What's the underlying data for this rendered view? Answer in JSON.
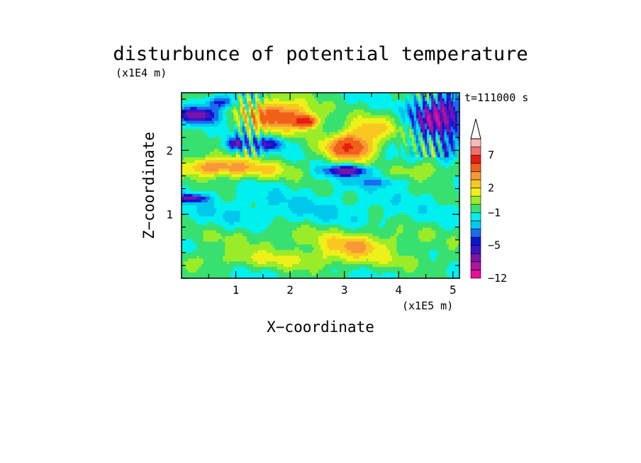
{
  "chart_data": {
    "type": "heatmap",
    "title": "disturbunce of potential temperature",
    "xlabel": "X−coordinate",
    "ylabel": "Z−coordinate",
    "x_scale_label": "(x1E5 m)",
    "y_scale_label": "(x1E4 m)",
    "time_label": "t=111000 s",
    "xlim": [
      0,
      5.12
    ],
    "ylim": [
      0,
      2.9
    ],
    "x_ticks": [
      1,
      2,
      3,
      4,
      5
    ],
    "x_tick_labels": [
      "1",
      "2",
      "3",
      "4",
      "5"
    ],
    "y_ticks": [
      1,
      2
    ],
    "y_tick_labels": [
      "1",
      "2"
    ],
    "colorbar": {
      "labels": [
        {
          "text": "7",
          "value": 7
        },
        {
          "text": "2",
          "value": 2
        },
        {
          "text": "−1",
          "value": -1
        },
        {
          "text": "−5",
          "value": -5
        },
        {
          "text": "−12",
          "value": -12
        }
      ],
      "levels": [
        -12,
        -9,
        -7,
        -5,
        -4,
        -3,
        -2,
        -1,
        0,
        1,
        2,
        3,
        4,
        5,
        7,
        9,
        12
      ],
      "colors": [
        "#e6109a",
        "#b0139f",
        "#7a15a8",
        "#3b14c8",
        "#0a16d2",
        "#1b6bf0",
        "#00c8ec",
        "#00f0f0",
        "#38e070",
        "#9aec28",
        "#eef01a",
        "#f8c820",
        "#f89838",
        "#f06018",
        "#e81c10",
        "#f07070",
        "#f8b8b8"
      ],
      "extend": "max"
    },
    "features": [
      {
        "x": 0.3,
        "z": 2.55,
        "sx": 0.35,
        "sz": 0.12,
        "v": -6
      },
      {
        "x": 0.7,
        "z": 2.75,
        "sx": 0.25,
        "sz": 0.1,
        "v": -4
      },
      {
        "x": 1.8,
        "z": 2.55,
        "sx": 0.6,
        "sz": 0.25,
        "v": 6
      },
      {
        "x": 2.3,
        "z": 2.45,
        "sx": 0.2,
        "sz": 0.1,
        "v": 7
      },
      {
        "x": 3.1,
        "z": 2.05,
        "sx": 0.45,
        "sz": 0.2,
        "v": 7
      },
      {
        "x": 3.5,
        "z": 2.35,
        "sx": 0.5,
        "sz": 0.2,
        "v": 3
      },
      {
        "x": 3.05,
        "z": 1.68,
        "sx": 0.4,
        "sz": 0.08,
        "v": -6
      },
      {
        "x": 3.6,
        "z": 1.5,
        "sx": 0.5,
        "sz": 0.08,
        "v": -2
      },
      {
        "x": 1.0,
        "z": 2.1,
        "sx": 0.2,
        "sz": 0.1,
        "v": -5
      },
      {
        "x": 1.6,
        "z": 2.1,
        "sx": 0.3,
        "sz": 0.1,
        "v": -4
      },
      {
        "x": 0.5,
        "z": 1.75,
        "sx": 0.6,
        "sz": 0.15,
        "v": 4
      },
      {
        "x": 1.3,
        "z": 1.7,
        "sx": 0.8,
        "sz": 0.15,
        "v": 3
      },
      {
        "x": 0.2,
        "z": 1.25,
        "sx": 0.3,
        "sz": 0.06,
        "v": -5
      },
      {
        "x": 2.0,
        "z": 1.05,
        "sx": 2.2,
        "sz": 0.3,
        "v": -1
      },
      {
        "x": 2.5,
        "z": 0.65,
        "sx": 2.2,
        "sz": 0.2,
        "v": 1.5
      },
      {
        "x": 2.2,
        "z": 0.3,
        "sx": 2.5,
        "sz": 0.15,
        "v": 2
      },
      {
        "x": 3.2,
        "z": 0.5,
        "sx": 0.6,
        "sz": 0.15,
        "v": 3
      },
      {
        "x": 4.6,
        "z": 2.5,
        "sx": 0.35,
        "sz": 0.3,
        "v": -6
      },
      {
        "x": 4.95,
        "z": 2.6,
        "sx": 0.25,
        "sz": 0.3,
        "v": -4
      },
      {
        "x": 4.5,
        "z": 1.7,
        "sx": 0.5,
        "sz": 0.15,
        "v": 2
      },
      {
        "x": 4.9,
        "z": 2.0,
        "sx": 0.2,
        "sz": 0.2,
        "v": -3
      }
    ]
  }
}
